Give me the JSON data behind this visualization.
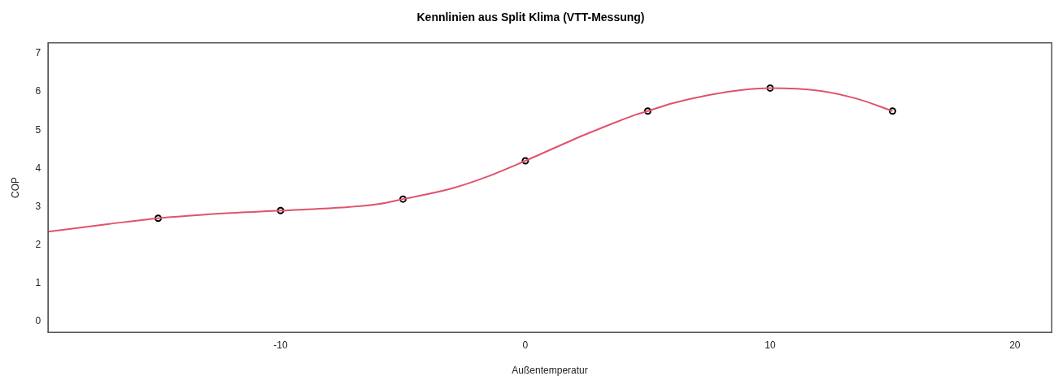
{
  "chart_data": {
    "type": "line",
    "title": "Kennlinien aus Split Klima (VTT-Messung)",
    "xlabel": "Außentemperatur",
    "ylabel": "COP",
    "xlim": [
      -19.5,
      21.5
    ],
    "ylim": [
      -0.28,
      7.28
    ],
    "xticks": [
      -10,
      0,
      10,
      20
    ],
    "yticks": [
      0,
      1,
      2,
      3,
      4,
      5,
      6,
      7
    ],
    "series": [
      {
        "type": "line",
        "color": "#df536b",
        "marker": "none",
        "line_style": "solid",
        "x": [
          -19.5,
          -17,
          -15,
          -12.5,
          -10,
          -7.5,
          -6,
          -5,
          -3,
          -1.5,
          0,
          2.5,
          4.5,
          5,
          6,
          7.5,
          9,
          10,
          12,
          13.5,
          15
        ],
        "values": [
          2.35,
          2.55,
          2.7,
          2.82,
          2.9,
          2.98,
          3.07,
          3.2,
          3.48,
          3.8,
          4.2,
          4.9,
          5.4,
          5.5,
          5.7,
          5.92,
          6.06,
          6.1,
          6.03,
          5.83,
          5.5
        ]
      },
      {
        "type": "scatter",
        "color": "#000000",
        "marker": "circle",
        "x": [
          -15,
          -10,
          -5,
          0,
          5,
          10,
          15
        ],
        "values": [
          2.7,
          2.9,
          3.2,
          4.2,
          5.5,
          6.1,
          5.5
        ]
      }
    ]
  }
}
